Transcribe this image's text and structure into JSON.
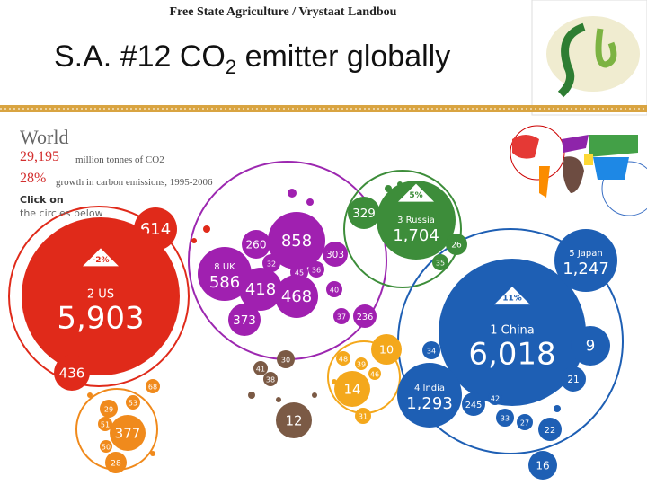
{
  "header": "Free State Agriculture / Vrystaat Landbou",
  "title": {
    "before": "S.A. #12 CO",
    "sub": "2",
    "after": " emitter globally"
  },
  "legend": {
    "region": "World",
    "total": "29,195",
    "total_unit": "million tonnes of CO2",
    "growth": "28%",
    "growth_text": "growth in carbon emissions, 1995-2006",
    "hint1": "Click on",
    "hint2": "the circles below"
  },
  "bubbles": [
    {
      "label": "614"
    },
    {
      "label": "5,903",
      "name": "2 US",
      "change": "-2%"
    },
    {
      "label": "436"
    },
    {
      "label": "858"
    },
    {
      "label": "260"
    },
    {
      "label": "303"
    },
    {
      "label": "586",
      "name": "8 UK"
    },
    {
      "label": "32"
    },
    {
      "label": "45"
    },
    {
      "label": "36"
    },
    {
      "label": "418"
    },
    {
      "label": "468"
    },
    {
      "label": "40"
    },
    {
      "label": "373"
    },
    {
      "label": "37"
    },
    {
      "label": "236"
    },
    {
      "label": "329"
    },
    {
      "label": "1,704",
      "name": "3 Russia",
      "change": "5%"
    },
    {
      "label": "26"
    },
    {
      "label": "35"
    },
    {
      "label": "6,018",
      "name": "1 China",
      "change": "11%"
    },
    {
      "label": "1,247",
      "name": "5 Japan"
    },
    {
      "label": "9"
    },
    {
      "label": "34"
    },
    {
      "label": "1,293",
      "name": "4 India"
    },
    {
      "label": "21"
    },
    {
      "label": "245"
    },
    {
      "label": "42"
    },
    {
      "label": "33"
    },
    {
      "label": "27"
    },
    {
      "label": "22"
    },
    {
      "label": "16"
    },
    {
      "label": "30"
    },
    {
      "label": "41"
    },
    {
      "label": "38"
    },
    {
      "label": "12"
    },
    {
      "label": "10"
    },
    {
      "label": "48"
    },
    {
      "label": "39"
    },
    {
      "label": "46"
    },
    {
      "label": "14"
    },
    {
      "label": "31"
    },
    {
      "label": "29"
    },
    {
      "label": "53"
    },
    {
      "label": "68"
    },
    {
      "label": "51"
    },
    {
      "label": "377"
    },
    {
      "label": "50"
    },
    {
      "label": "28"
    }
  ]
}
